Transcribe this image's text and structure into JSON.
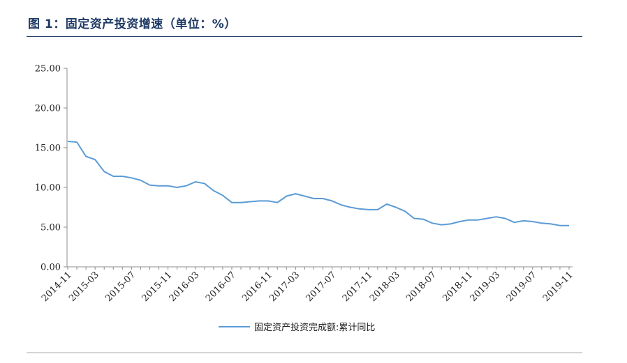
{
  "header": {
    "title": "图 1：固定资产投资增速（单位：%）"
  },
  "chart_data": {
    "type": "line",
    "title": "",
    "xlabel": "",
    "ylabel": "",
    "ylim": [
      0,
      25
    ],
    "y_ticks": [
      "0.00",
      "5.00",
      "10.00",
      "15.00",
      "20.00",
      "25.00"
    ],
    "x_tick_labels": [
      "2014-11",
      "2015-03",
      "2015-07",
      "2015-11",
      "2016-03",
      "2016-07",
      "2016-11",
      "2017-03",
      "2017-07",
      "2017-11",
      "2018-03",
      "2018-07",
      "2018-11",
      "2019-03",
      "2019-07",
      "2019-11"
    ],
    "grid": false,
    "legend_position": "bottom",
    "line_color": "#5b9bd5",
    "x": [
      "2014-11",
      "2014-12",
      "2015-02",
      "2015-03",
      "2015-04",
      "2015-05",
      "2015-06",
      "2015-07",
      "2015-08",
      "2015-09",
      "2015-10",
      "2015-11",
      "2015-12",
      "2016-02",
      "2016-03",
      "2016-04",
      "2016-05",
      "2016-06",
      "2016-07",
      "2016-08",
      "2016-09",
      "2016-10",
      "2016-11",
      "2016-12",
      "2017-02",
      "2017-03",
      "2017-04",
      "2017-05",
      "2017-06",
      "2017-07",
      "2017-08",
      "2017-09",
      "2017-10",
      "2017-11",
      "2017-12",
      "2018-02",
      "2018-03",
      "2018-04",
      "2018-05",
      "2018-06",
      "2018-07",
      "2018-08",
      "2018-09",
      "2018-10",
      "2018-11",
      "2018-12",
      "2019-02",
      "2019-03",
      "2019-04",
      "2019-05",
      "2019-06",
      "2019-07",
      "2019-08",
      "2019-09",
      "2019-10",
      "2019-11"
    ],
    "series": [
      {
        "name": "固定资产投资完成额:累计同比",
        "values": [
          15.8,
          15.7,
          13.9,
          13.5,
          12.0,
          11.4,
          11.4,
          11.2,
          10.9,
          10.3,
          10.2,
          10.2,
          10.0,
          10.2,
          10.7,
          10.5,
          9.6,
          9.0,
          8.1,
          8.1,
          8.2,
          8.3,
          8.3,
          8.1,
          8.9,
          9.2,
          8.9,
          8.6,
          8.6,
          8.3,
          7.8,
          7.5,
          7.3,
          7.2,
          7.2,
          7.9,
          7.5,
          7.0,
          6.1,
          6.0,
          5.5,
          5.3,
          5.4,
          5.7,
          5.9,
          5.9,
          6.1,
          6.3,
          6.1,
          5.6,
          5.8,
          5.7,
          5.5,
          5.4,
          5.2,
          5.2
        ]
      }
    ]
  }
}
